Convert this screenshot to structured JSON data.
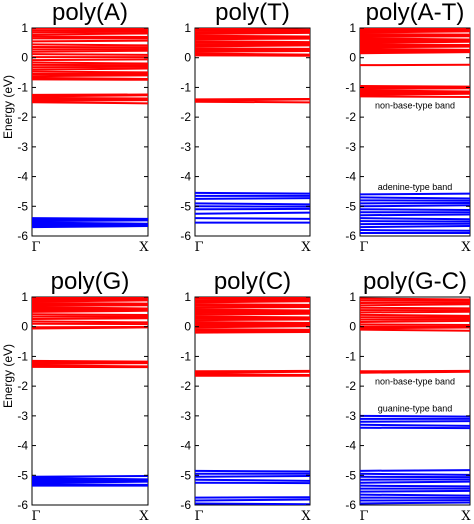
{
  "colors": {
    "valence": "#ff0000",
    "base": "#0000ff",
    "frame": "#000000"
  },
  "chart_data": [
    {
      "type": "line",
      "title": "poly(A)",
      "ylabel": "Energy (eV)",
      "xticks": [
        "Γ",
        "X"
      ],
      "ylim": [
        -6,
        1
      ],
      "yticks": [
        -6,
        -5,
        -4,
        -3,
        -2,
        -1,
        0,
        1
      ],
      "grid": false,
      "bands": [
        {
          "color": "red",
          "values": [
            1.0,
            0.93,
            0.86,
            0.78,
            0.72,
            0.65,
            0.55,
            0.45,
            0.36,
            0.28,
            0.2,
            0.12,
            0.02,
            -0.08,
            -0.16,
            -0.24,
            -0.32,
            -0.4,
            -0.47,
            -0.55,
            -0.62,
            -0.68,
            -0.73
          ]
        },
        {
          "color": "red",
          "values": [
            -1.25,
            -1.3,
            -1.35,
            -1.4,
            -1.45,
            -1.5
          ]
        },
        {
          "color": "blue",
          "values": [
            -5.4,
            -5.45,
            -5.5,
            -5.55,
            -5.6,
            -5.65,
            -5.7
          ]
        }
      ],
      "annotations": []
    },
    {
      "type": "line",
      "title": "poly(T)",
      "ylabel": "",
      "xticks": [
        "Γ",
        "X"
      ],
      "ylim": [
        -6,
        1
      ],
      "yticks": [
        -6,
        -5,
        -4,
        -3,
        -2,
        -1,
        0,
        1
      ],
      "grid": false,
      "bands": [
        {
          "color": "red",
          "values": [
            0.98,
            0.92,
            0.86,
            0.8,
            0.74,
            0.68,
            0.62,
            0.56,
            0.5,
            0.44,
            0.38,
            0.32,
            0.26,
            0.2,
            0.14,
            0.08
          ]
        },
        {
          "color": "red",
          "values": [
            -1.4,
            -1.44,
            -1.48
          ]
        },
        {
          "color": "blue",
          "values": [
            -4.55,
            -4.65,
            -4.75,
            -4.9,
            -5.0,
            -5.1,
            -5.25,
            -5.4,
            -5.55
          ]
        }
      ],
      "annotations": []
    },
    {
      "type": "line",
      "title": "poly(A-T)",
      "ylabel": "",
      "xticks": [
        "Γ",
        "X"
      ],
      "ylim": [
        -6,
        1
      ],
      "yticks": [
        -6,
        -5,
        -4,
        -3,
        -2,
        -1,
        0,
        1
      ],
      "grid": false,
      "bands": [
        {
          "color": "red",
          "values": [
            1.0,
            0.95,
            0.9,
            0.85,
            0.8,
            0.75,
            0.7,
            0.65,
            0.6,
            0.55,
            0.5,
            0.45,
            0.4,
            0.35,
            0.3,
            0.25,
            0.2,
            0.15
          ]
        },
        {
          "color": "red",
          "values": [
            -0.25
          ]
        },
        {
          "color": "red",
          "values": [
            -0.95,
            -1.0,
            -1.05,
            -1.1,
            -1.15,
            -1.2,
            -1.25,
            -1.3
          ]
        },
        {
          "color": "blue",
          "values": [
            -4.6,
            -4.7,
            -4.8,
            -4.9,
            -5.0,
            -5.1,
            -5.2,
            -5.3,
            -5.4,
            -5.5,
            -5.6,
            -5.7,
            -5.8,
            -5.9
          ]
        }
      ],
      "annotations": [
        {
          "text": "non-base-type band",
          "y": -1.6
        },
        {
          "text": "adenine-type band",
          "y": -4.35
        }
      ]
    },
    {
      "type": "line",
      "title": "poly(G)",
      "ylabel": "Energy (eV)",
      "xticks": [
        "Γ",
        "X"
      ],
      "ylim": [
        -6,
        1
      ],
      "yticks": [
        -6,
        -5,
        -4,
        -3,
        -2,
        -1,
        0,
        1
      ],
      "grid": false,
      "bands": [
        {
          "color": "red",
          "values": [
            1.0,
            0.95,
            0.9,
            0.85,
            0.8,
            0.75,
            0.7,
            0.65,
            0.6,
            0.55,
            0.5,
            0.42,
            0.34,
            0.26,
            0.18,
            0.1
          ]
        },
        {
          "color": "red",
          "values": [
            -0.02,
            -0.06
          ]
        },
        {
          "color": "red",
          "values": [
            -1.15,
            -1.2,
            -1.25,
            -1.3,
            -1.35
          ]
        },
        {
          "color": "blue",
          "values": [
            -5.05,
            -5.1,
            -5.15,
            -5.2,
            -5.25,
            -5.3,
            -5.35
          ]
        }
      ],
      "annotations": []
    },
    {
      "type": "line",
      "title": "poly(C)",
      "ylabel": "",
      "xticks": [
        "Γ",
        "X"
      ],
      "ylim": [
        -6,
        1
      ],
      "yticks": [
        -6,
        -5,
        -4,
        -3,
        -2,
        -1,
        0,
        1
      ],
      "grid": false,
      "bands": [
        {
          "color": "red",
          "values": [
            1.0,
            0.94,
            0.88,
            0.82,
            0.76,
            0.7,
            0.64,
            0.58,
            0.52,
            0.46,
            0.4,
            0.34,
            0.28,
            0.22,
            0.16,
            0.1,
            0.04,
            -0.02,
            -0.08,
            -0.14,
            -0.2
          ]
        },
        {
          "color": "red",
          "values": [
            -1.5,
            -1.55,
            -1.6,
            -1.65
          ]
        },
        {
          "color": "blue",
          "values": [
            -4.85,
            -4.95,
            -5.05,
            -5.15,
            -5.25,
            -5.75,
            -5.85,
            -5.95
          ]
        }
      ],
      "annotations": []
    },
    {
      "type": "line",
      "title": "poly(G-C)",
      "ylabel": "",
      "xticks": [
        "Γ",
        "X"
      ],
      "ylim": [
        -6,
        1
      ],
      "yticks": [
        -6,
        -5,
        -4,
        -3,
        -2,
        -1,
        0,
        1
      ],
      "grid": false,
      "bands": [
        {
          "color": "red",
          "values": [
            0.95,
            0.88,
            0.8,
            0.72,
            0.64,
            0.56,
            0.48,
            0.4,
            0.32,
            0.24,
            0.16,
            0.08,
            0.0,
            -0.05,
            -0.1
          ]
        },
        {
          "color": "red",
          "values": [
            -1.5,
            -1.55
          ]
        },
        {
          "color": "blue",
          "values": [
            -3.0,
            -3.1,
            -3.2,
            -3.3,
            -3.4
          ]
        },
        {
          "color": "blue",
          "values": [
            -4.85,
            -4.95,
            -5.05,
            -5.15,
            -5.25,
            -5.35,
            -5.45,
            -5.55,
            -5.65,
            -5.75,
            -5.85,
            -5.95
          ]
        }
      ],
      "annotations": [
        {
          "text": "non-base-type band",
          "y": -1.85
        },
        {
          "text": "guanine-type band",
          "y": -2.75
        }
      ]
    }
  ]
}
